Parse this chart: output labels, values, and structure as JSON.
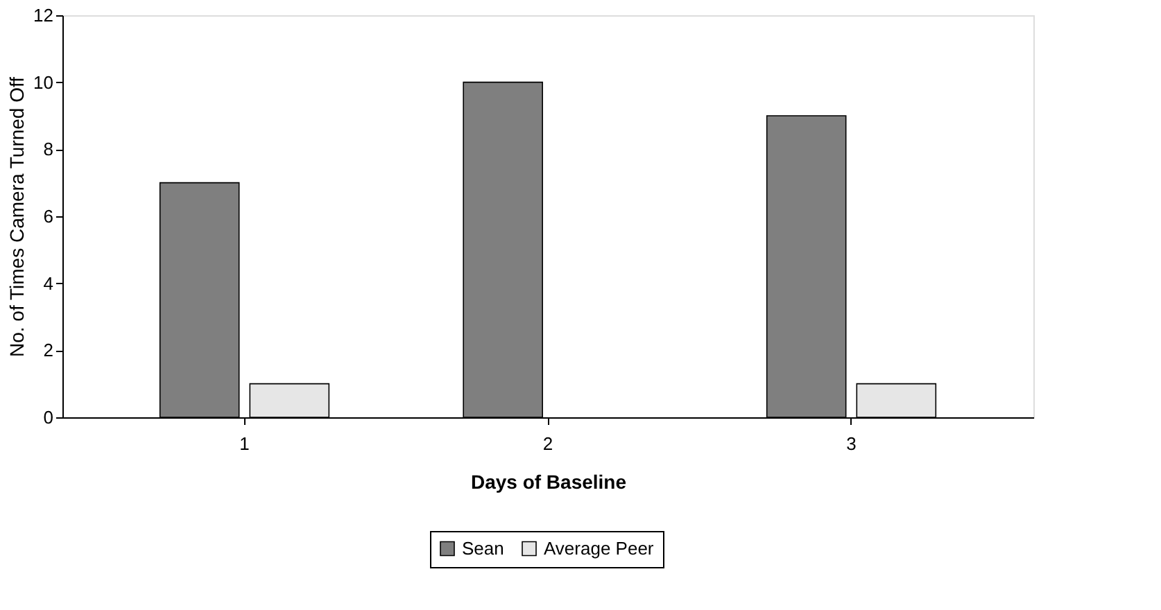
{
  "chart_data": {
    "type": "bar",
    "xlabel": "Days of Baseline",
    "ylabel": "No. of Times Camera Turned Off",
    "categories": [
      "1",
      "2",
      "3"
    ],
    "series": [
      {
        "name": "Sean",
        "color": "#7f7f7f",
        "values": [
          7,
          10,
          9
        ]
      },
      {
        "name": "Average Peer",
        "color": "#e6e6e6",
        "values": [
          1,
          0,
          1
        ]
      }
    ],
    "ylim": [
      0,
      12
    ],
    "yticks": [
      0,
      2,
      4,
      6,
      8,
      10,
      12
    ],
    "grid": false,
    "legend": "bottom"
  }
}
